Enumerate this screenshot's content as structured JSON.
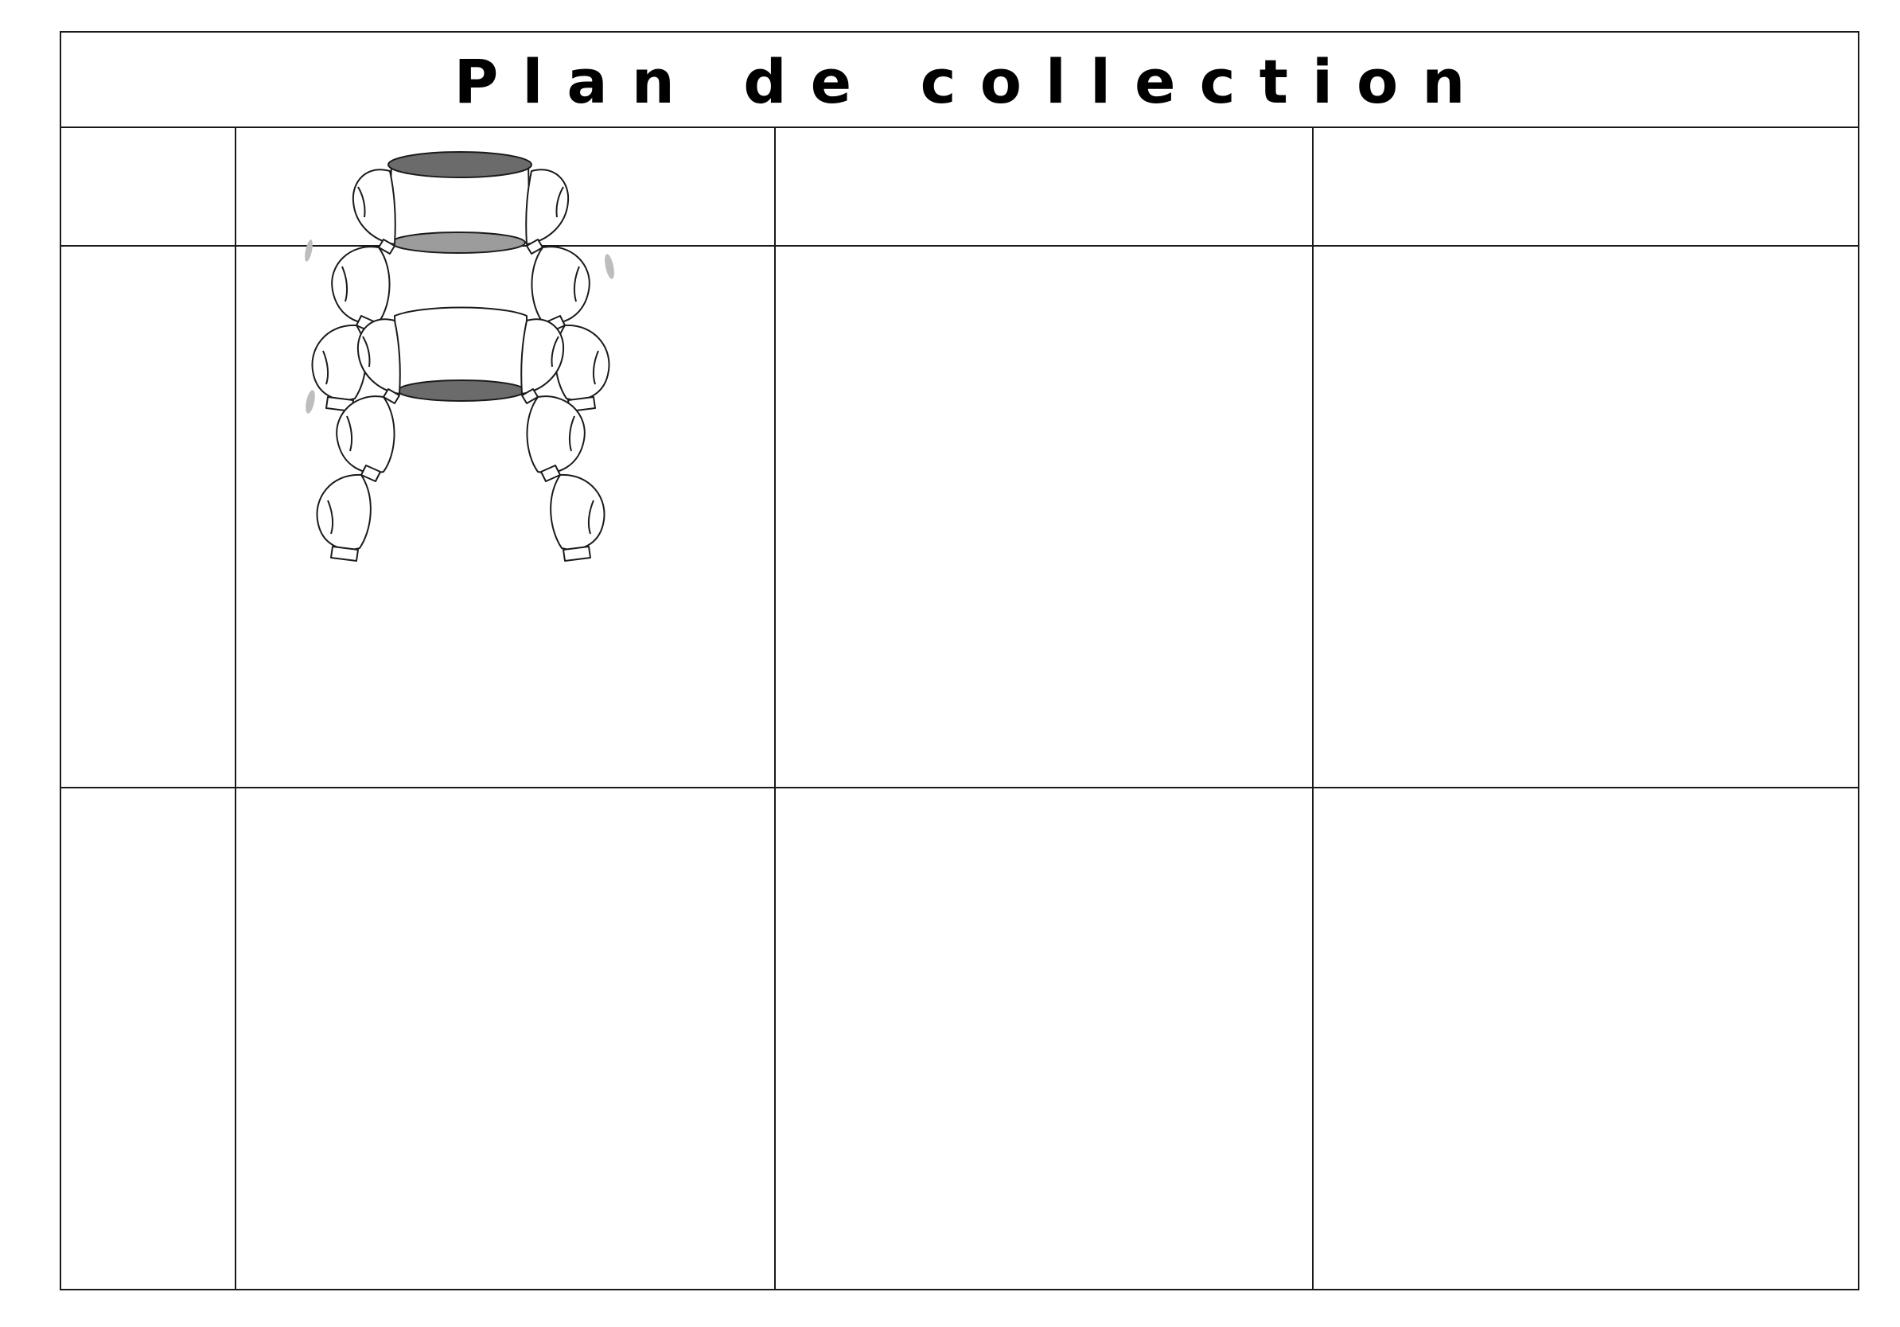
{
  "page": {
    "title": "Plan de collection"
  },
  "table": {
    "columns": 4,
    "rows": 3,
    "header_cells": [
      "",
      "",
      "",
      ""
    ],
    "body_cells": [
      [
        "",
        "",
        "",
        ""
      ],
      [
        "",
        "",
        "",
        ""
      ]
    ]
  },
  "sketch": {
    "icon": "puff-sleeve-bolero-flat-sketch-icon",
    "colors": {
      "line": "#1a1a1a",
      "fill": "#ffffff",
      "neck_shade": "#6b6b6b",
      "hem_shade": "#9c9c9c",
      "highlight": "#bdbdbd"
    }
  }
}
